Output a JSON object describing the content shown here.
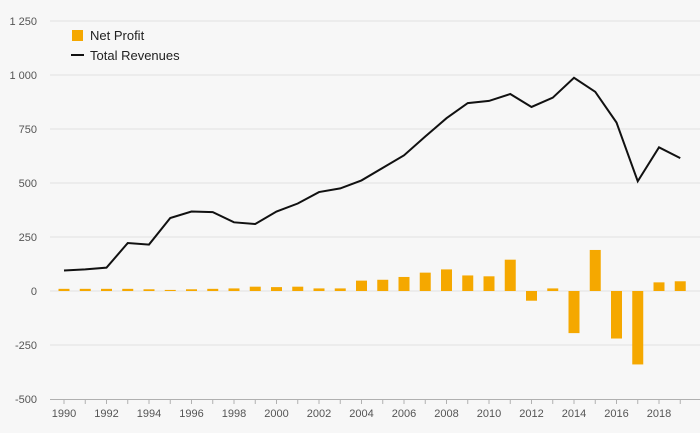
{
  "chart_data": {
    "type": "bar",
    "title": "",
    "xlabel": "",
    "ylabel": "",
    "ylim": [
      -500,
      1250
    ],
    "yticks": [
      -500,
      -250,
      0,
      250,
      500,
      750,
      1000,
      1250
    ],
    "ytick_labels": [
      "-500",
      "-250",
      "0",
      "250",
      "500",
      "750",
      "1 000",
      "1 250"
    ],
    "x": [
      1990,
      1991,
      1992,
      1993,
      1994,
      1995,
      1996,
      1997,
      1998,
      1999,
      2000,
      2001,
      2002,
      2003,
      2004,
      2005,
      2006,
      2007,
      2008,
      2009,
      2010,
      2011,
      2012,
      2013,
      2014,
      2015,
      2016,
      2017,
      2018,
      2019
    ],
    "xtick_labels": [
      "1990",
      "1992",
      "1994",
      "1996",
      "1998",
      "2000",
      "2002",
      "2004",
      "2006",
      "2008",
      "2010",
      "2012",
      "2014",
      "2016",
      "2018"
    ],
    "grid": "horizontal",
    "legend": "top-left",
    "series": [
      {
        "name": "Net Profit",
        "kind": "bar",
        "color": "#f5a800",
        "values": [
          10,
          10,
          10,
          10,
          8,
          5,
          8,
          10,
          12,
          20,
          18,
          20,
          12,
          12,
          48,
          52,
          65,
          85,
          100,
          72,
          68,
          145,
          -45,
          12,
          -195,
          190,
          -220,
          -340,
          40,
          45
        ]
      },
      {
        "name": "Total Revenues",
        "kind": "line",
        "color": "#111111",
        "values": [
          95,
          100,
          108,
          222,
          215,
          338,
          368,
          365,
          318,
          310,
          368,
          405,
          458,
          475,
          512,
          570,
          628,
          715,
          800,
          870,
          880,
          912,
          852,
          895,
          987,
          922,
          780,
          508,
          665,
          615
        ]
      }
    ]
  }
}
